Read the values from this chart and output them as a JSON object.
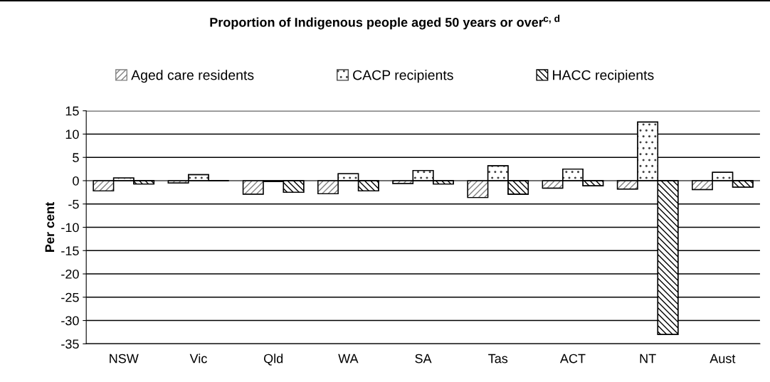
{
  "chart_data": {
    "type": "bar",
    "title": "Proportion of Indigenous people aged 50 years or over$^{c, d}$",
    "ylabel": "Per cent",
    "categories": [
      "NSW",
      "Vic",
      "Qld",
      "WA",
      "SA",
      "Tas",
      "ACT",
      "NT",
      "Aust"
    ],
    "series": [
      {
        "name": "Aged care residents",
        "color": "#808080",
        "values": [
          -2.2,
          -0.5,
          -2.9,
          -2.8,
          -0.6,
          -3.6,
          -1.6,
          -1.8,
          -1.9
        ]
      },
      {
        "name": "CACP recipients",
        "color": "#404040",
        "values": [
          0.6,
          1.3,
          -0.2,
          1.5,
          2.2,
          3.2,
          2.5,
          12.6,
          1.8
        ]
      },
      {
        "name": "HACC recipients",
        "color": "#000000",
        "values": [
          -0.7,
          0.0,
          -2.5,
          -2.2,
          -0.7,
          -2.9,
          -1.1,
          -33.0,
          -1.4
        ]
      }
    ],
    "ylim": [
      -35,
      15
    ],
    "yticks": [
      -35,
      -30,
      -25,
      -20,
      -15,
      -10,
      -5,
      0,
      5,
      10,
      15
    ],
    "grid": "y",
    "legend": "top"
  }
}
